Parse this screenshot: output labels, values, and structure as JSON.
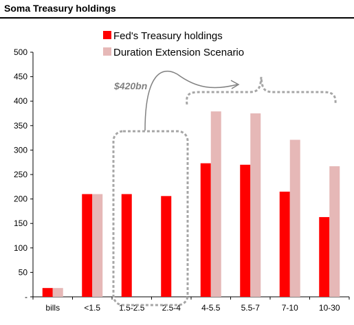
{
  "chart_data": {
    "type": "bar",
    "title": "Soma Treasury holdings",
    "categories": [
      "bills",
      "<1.5",
      "1.5-2.5",
      "2.5-4",
      "4-5.5",
      "5.5-7",
      "7-10",
      "10-30"
    ],
    "series": [
      {
        "name": "Fed's Treasury holdings",
        "color": "#ff0000",
        "values": [
          18,
          210,
          210,
          206,
          273,
          270,
          215,
          163
        ]
      },
      {
        "name": "Duration Extension Scenario",
        "color": "#e6b8b7",
        "values": [
          18,
          210,
          0,
          0,
          379,
          375,
          321,
          267
        ]
      }
    ],
    "yticks": [
      "-",
      "50",
      "100",
      "150",
      "200",
      "250",
      "300",
      "350",
      "400",
      "450",
      "500"
    ],
    "ylim": [
      0,
      500
    ],
    "grid": false,
    "legend": "top-center",
    "annotation": {
      "text": "$420bn"
    }
  }
}
